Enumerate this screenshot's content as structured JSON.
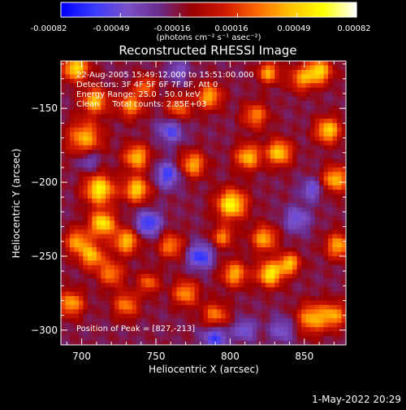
{
  "colorbar": {
    "tick_labels": [
      "-0.00082",
      "-0.00049",
      "-0.00016",
      "0.00016",
      "0.00049",
      "0.00082"
    ],
    "units_label": "(photons cm⁻² s⁻¹ asec⁻²)",
    "colormap": [
      "#0000ff",
      "#3a3aff",
      "#7a50c8",
      "#6a2a8a",
      "#9a0000",
      "#d01800",
      "#ff6a00",
      "#ffc000",
      "#ffff00",
      "#ffffff"
    ]
  },
  "plot": {
    "title": "Reconstructed RHESSI Image",
    "annotations": [
      "22-Aug-2005 15:49:12.000 to 15:51:00.000",
      "Detectors: 3F 4F 5F 6F 7F 8F, Att 0",
      "Energy Range: 25.0 - 50.0 keV",
      "Clean     Total counts: 2.85E+03"
    ],
    "peak_label": "Position of Peak = [827,-213]",
    "timestamp": "1-May-2022 20:29"
  },
  "chart_data": {
    "type": "heatmap",
    "title": "Reconstructed RHESSI Image",
    "xlabel": "Heliocentric X (arcsec)",
    "ylabel": "Heliocentric Y (arcsec)",
    "xlim": [
      686,
      878
    ],
    "ylim": [
      -310,
      -118
    ],
    "xticks": [
      700,
      750,
      800,
      850
    ],
    "yticks": [
      -150,
      -200,
      -250,
      -300
    ],
    "value_range": [
      -0.00082,
      0.00082
    ],
    "peak": [
      827,
      -213
    ],
    "sources": [
      {
        "x": 696,
        "y": -123,
        "value": 0.00075,
        "sigma": 6
      },
      {
        "x": 702,
        "y": -170,
        "value": 0.0006,
        "sigma": 8
      },
      {
        "x": 709,
        "y": -145,
        "value": 0.00065,
        "sigma": 6
      },
      {
        "x": 712,
        "y": -205,
        "value": 0.0008,
        "sigma": 7
      },
      {
        "x": 714,
        "y": -228,
        "value": 0.00078,
        "sigma": 6
      },
      {
        "x": 707,
        "y": -250,
        "value": 0.0006,
        "sigma": 6
      },
      {
        "x": 697,
        "y": -240,
        "value": 0.00055,
        "sigma": 6
      },
      {
        "x": 693,
        "y": -282,
        "value": 0.0006,
        "sigma": 6
      },
      {
        "x": 720,
        "y": -262,
        "value": 0.0005,
        "sigma": 6
      },
      {
        "x": 730,
        "y": -240,
        "value": 0.00065,
        "sigma": 6
      },
      {
        "x": 737,
        "y": -205,
        "value": 0.0007,
        "sigma": 6
      },
      {
        "x": 737,
        "y": -183,
        "value": 0.00065,
        "sigma": 6
      },
      {
        "x": 733,
        "y": -148,
        "value": 0.00055,
        "sigma": 6
      },
      {
        "x": 743,
        "y": -135,
        "value": 0.00045,
        "sigma": 5
      },
      {
        "x": 730,
        "y": -283,
        "value": 0.0005,
        "sigma": 6
      },
      {
        "x": 745,
        "y": -268,
        "value": 0.00045,
        "sigma": 5
      },
      {
        "x": 765,
        "y": -150,
        "value": 0.00045,
        "sigma": 6
      },
      {
        "x": 775,
        "y": -188,
        "value": 0.0006,
        "sigma": 6
      },
      {
        "x": 760,
        "y": -243,
        "value": 0.0005,
        "sigma": 6
      },
      {
        "x": 786,
        "y": -142,
        "value": 0.0006,
        "sigma": 6
      },
      {
        "x": 795,
        "y": -237,
        "value": 0.0005,
        "sigma": 5
      },
      {
        "x": 770,
        "y": -275,
        "value": 0.00055,
        "sigma": 6
      },
      {
        "x": 790,
        "y": -290,
        "value": 0.0005,
        "sigma": 6
      },
      {
        "x": 803,
        "y": -262,
        "value": 0.0006,
        "sigma": 6
      },
      {
        "x": 801,
        "y": -215,
        "value": 0.00082,
        "sigma": 7
      },
      {
        "x": 812,
        "y": -183,
        "value": 0.00065,
        "sigma": 6
      },
      {
        "x": 817,
        "y": -155,
        "value": 0.0005,
        "sigma": 6
      },
      {
        "x": 826,
        "y": -126,
        "value": 0.0006,
        "sigma": 5
      },
      {
        "x": 833,
        "y": -180,
        "value": 0.0007,
        "sigma": 6
      },
      {
        "x": 823,
        "y": -238,
        "value": 0.0006,
        "sigma": 6
      },
      {
        "x": 827,
        "y": -262,
        "value": 0.00078,
        "sigma": 6
      },
      {
        "x": 840,
        "y": -255,
        "value": 0.00065,
        "sigma": 5
      },
      {
        "x": 848,
        "y": -130,
        "value": 0.0005,
        "sigma": 6
      },
      {
        "x": 860,
        "y": -125,
        "value": 0.0007,
        "sigma": 6
      },
      {
        "x": 866,
        "y": -165,
        "value": 0.0007,
        "sigma": 6
      },
      {
        "x": 871,
        "y": -198,
        "value": 0.00065,
        "sigma": 6
      },
      {
        "x": 873,
        "y": -243,
        "value": 0.0006,
        "sigma": 6
      },
      {
        "x": 855,
        "y": -292,
        "value": 0.0006,
        "sigma": 7
      },
      {
        "x": 870,
        "y": -290,
        "value": 0.00055,
        "sigma": 6
      },
      {
        "x": 745,
        "y": -228,
        "value": -0.0005,
        "sigma": 6
      },
      {
        "x": 758,
        "y": -195,
        "value": -0.00045,
        "sigma": 6
      },
      {
        "x": 780,
        "y": -250,
        "value": -0.0005,
        "sigma": 6
      },
      {
        "x": 760,
        "y": -165,
        "value": -0.0004,
        "sigma": 6
      },
      {
        "x": 705,
        "y": -185,
        "value": -0.0003,
        "sigma": 5
      },
      {
        "x": 845,
        "y": -225,
        "value": -0.00035,
        "sigma": 6
      },
      {
        "x": 790,
        "y": -305,
        "value": -0.00045,
        "sigma": 6
      },
      {
        "x": 835,
        "y": -300,
        "value": -0.0003,
        "sigma": 6
      },
      {
        "x": 855,
        "y": -205,
        "value": -0.00035,
        "sigma": 5
      },
      {
        "x": 765,
        "y": -125,
        "value": -0.0003,
        "sigma": 5
      },
      {
        "x": 810,
        "y": -300,
        "value": -0.00035,
        "sigma": 5
      }
    ]
  }
}
